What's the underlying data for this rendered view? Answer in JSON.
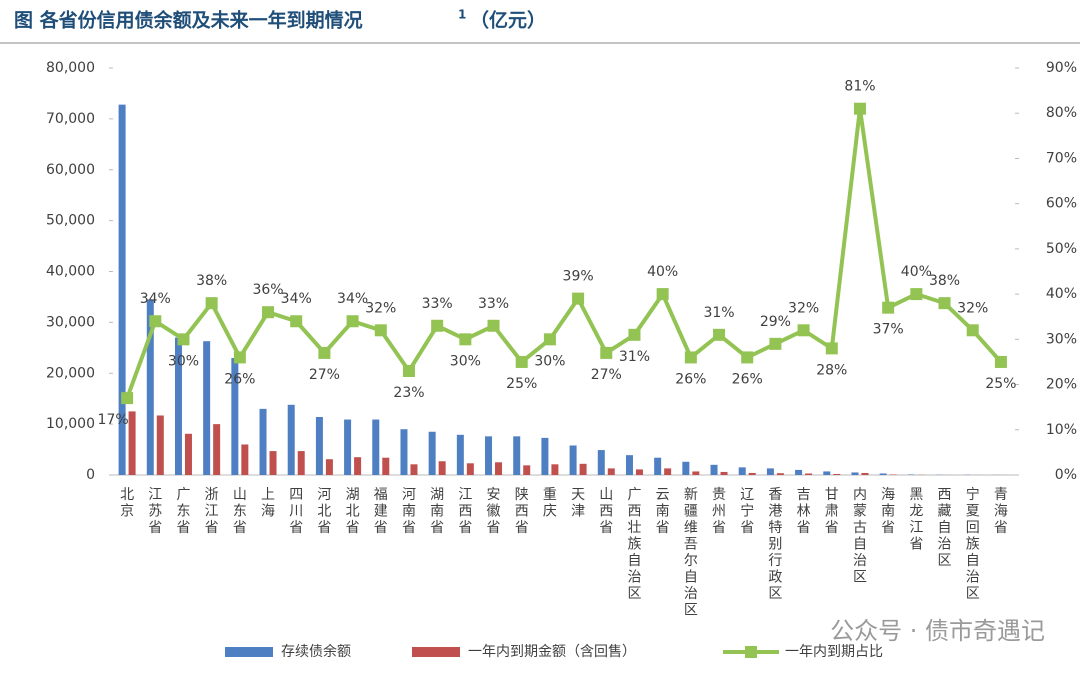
{
  "chart_data": {
    "type": "bar-line",
    "title": "图  各省份信用债余额及未来一年到期情况",
    "title_footnote": "1",
    "title_unit": "（亿元）",
    "watermark": "公众号 · 债市奇遇记",
    "categories": [
      "北京",
      "江苏省",
      "广东省",
      "浙江省",
      "山东省",
      "上海",
      "四川省",
      "河北省",
      "湖北省",
      "福建省",
      "河南省",
      "湖南省",
      "江西省",
      "安徽省",
      "陕西省",
      "重庆",
      "天津",
      "山西省",
      "广西壮族自治区",
      "云南省",
      "新疆维吾尔自治区",
      "贵州省",
      "辽宁省",
      "香港特别行政区",
      "吉林省",
      "甘肃省",
      "内蒙古自治区",
      "海南省",
      "黑龙江省",
      "西藏自治区",
      "宁夏回族自治区",
      "青海省"
    ],
    "series": [
      {
        "name": "存续债余额",
        "type": "bar",
        "color": "#4f7fc3",
        "values": [
          72800,
          34500,
          27000,
          26300,
          23000,
          13000,
          13800,
          11400,
          10900,
          10900,
          9000,
          8500,
          7900,
          7600,
          7600,
          7300,
          5800,
          4900,
          3900,
          3400,
          2600,
          2000,
          1500,
          1300,
          1000,
          700,
          500,
          300,
          100,
          50,
          50,
          30
        ]
      },
      {
        "name": "一年内到期金额（含回售）",
        "type": "bar",
        "color": "#c0504d",
        "values": [
          12500,
          11700,
          8100,
          10000,
          6000,
          4700,
          4700,
          3100,
          3500,
          3400,
          2100,
          2700,
          2300,
          2500,
          1900,
          2100,
          2200,
          1300,
          1100,
          1300,
          700,
          600,
          400,
          350,
          300,
          200,
          400,
          100,
          40,
          10,
          15,
          8
        ]
      },
      {
        "name": "一年内到期占比",
        "type": "line",
        "axis": "y2",
        "color": "#92c353",
        "values": [
          17,
          34,
          30,
          38,
          26,
          36,
          34,
          27,
          34,
          32,
          23,
          33,
          30,
          33,
          25,
          30,
          39,
          27,
          31,
          40,
          26,
          31,
          26,
          29,
          32,
          28,
          81,
          37,
          40,
          38,
          32,
          25
        ],
        "value_labels": [
          "17%",
          "34%",
          "30%",
          "38%",
          "26%",
          "36%",
          "34%",
          "27%",
          "34%",
          "32%",
          "23%",
          "33%",
          "30%",
          "33%",
          "25%",
          "30%",
          "39%",
          "27%",
          "31%",
          "40%",
          "26%",
          "31%",
          "26%",
          "29%",
          "32%",
          "28%",
          "81%",
          "37%",
          "40%",
          "38%",
          "32%",
          "25%"
        ]
      }
    ],
    "ylim": [
      0,
      80000
    ],
    "yticks": [
      0,
      {
        "value": 10000,
        "label": "10,000"
      },
      {
        "value": 20000,
        "label": "20,000"
      },
      {
        "value": 30000,
        "label": "30,000"
      },
      {
        "value": 40000,
        "label": "40,000"
      },
      {
        "value": 50000,
        "label": "50,000"
      },
      {
        "value": 60000,
        "label": "60,000"
      },
      {
        "value": 70000,
        "label": "70,000"
      },
      {
        "value": 80000,
        "label": "80,000"
      }
    ],
    "y2lim": [
      0,
      90
    ],
    "y2ticks": [
      {
        "value": 0,
        "label": "0%"
      },
      {
        "value": 10,
        "label": "10%"
      },
      {
        "value": 20,
        "label": "20%"
      },
      {
        "value": 30,
        "label": "30%"
      },
      {
        "value": 40,
        "label": "40%"
      },
      {
        "value": 50,
        "label": "50%"
      },
      {
        "value": 60,
        "label": "60%"
      },
      {
        "value": 70,
        "label": "70%"
      },
      {
        "value": 80,
        "label": "80%"
      },
      {
        "value": 90,
        "label": "90%"
      }
    ],
    "grid": false,
    "legend": "bottom"
  }
}
